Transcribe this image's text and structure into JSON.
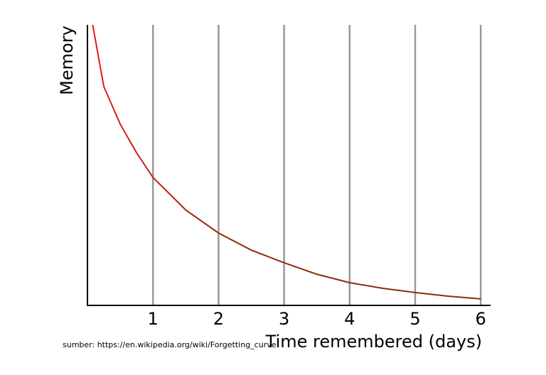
{
  "chart_data": {
    "type": "line",
    "x_label": "Time remembered (days)",
    "y_label": "Memory",
    "source": "sumber: https://en.wikipedia.org/wiki/Forgetting_curve",
    "x": [
      0.08,
      0.25,
      0.5,
      0.75,
      1,
      1.5,
      2,
      2.5,
      3,
      3.5,
      4,
      4.5,
      5,
      5.5,
      6
    ],
    "series": [
      {
        "values": [
          100,
          78,
          64.6,
          54.4,
          45.6,
          34,
          25.8,
          19.7,
          15.2,
          11.1,
          8.1,
          6.1,
          4.6,
          3.3,
          2.3
        ],
        "colors": [
          "#e41a1c",
          "#8b2e0a"
        ]
      }
    ],
    "xlim": [
      0,
      6.15
    ],
    "ylim": [
      0,
      100
    ],
    "xticks": [
      1,
      2,
      3,
      4,
      5,
      6
    ],
    "grid": true,
    "grid_color": "#999999"
  }
}
